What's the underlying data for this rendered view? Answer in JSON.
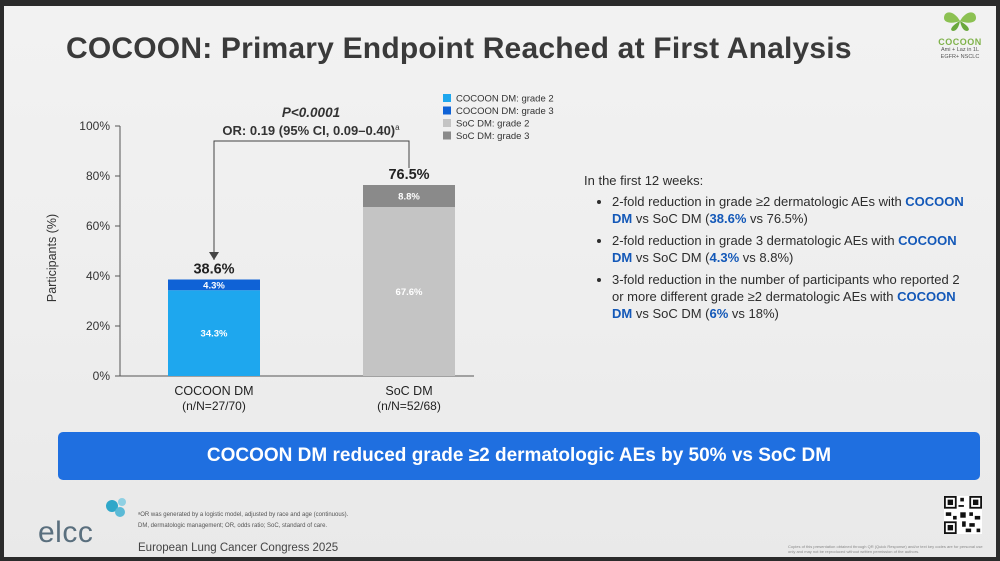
{
  "title": "COCOON: Primary Endpoint Reached at First Analysis",
  "logo": {
    "wordmark": "COCOON",
    "subtitle_1": "Ami + Laz in 1L",
    "subtitle_2": "EGFR+ NSCLC",
    "icon": "butterfly-icon"
  },
  "chart_data": {
    "type": "bar",
    "stacked": true,
    "categories": [
      "COCOON DM",
      "SoC DM"
    ],
    "category_subs": [
      "(n/N=27/70)",
      "(n/N=52/68)"
    ],
    "series": [
      {
        "name": "COCOON DM: grade 2",
        "color": "#1ea7ee",
        "values": [
          34.3,
          null
        ],
        "labels": [
          "34.3%",
          ""
        ]
      },
      {
        "name": "COCOON DM: grade 3",
        "color": "#0f62d6",
        "values": [
          4.3,
          null
        ],
        "labels": [
          "4.3%",
          ""
        ]
      },
      {
        "name": "SoC DM: grade 2",
        "color": "#c4c4c4",
        "values": [
          null,
          67.6
        ],
        "labels": [
          "",
          "67.6%"
        ]
      },
      {
        "name": "SoC DM: grade 3",
        "color": "#8a8a8a",
        "values": [
          null,
          8.8
        ],
        "labels": [
          "",
          "8.8%"
        ]
      }
    ],
    "totals": [
      "38.6%",
      "76.5%"
    ],
    "ylabel": "Participants (%)",
    "yticks": [
      "0%",
      "20%",
      "40%",
      "60%",
      "80%",
      "100%"
    ],
    "ylim": [
      0,
      100
    ],
    "annotation": {
      "pvalue": "P<0.0001",
      "or_text": "OR: 0.19 (95% CI, 0.09–0.40)",
      "superscript": "a"
    },
    "legend_position": "top-right"
  },
  "bullets": {
    "intro": "In the first 12 weeks:",
    "items": [
      [
        {
          "t": "2-fold reduction in grade ≥2 dermatologic AEs with "
        },
        {
          "t": "COCOON DM",
          "b": true
        },
        {
          "t": " vs SoC DM ("
        },
        {
          "t": "38.6%",
          "b": true
        },
        {
          "t": " vs 76.5%)"
        }
      ],
      [
        {
          "t": "2-fold reduction in grade 3 dermatologic AEs with "
        },
        {
          "t": "COCOON DM",
          "b": true
        },
        {
          "t": " vs SoC DM ("
        },
        {
          "t": "4.3%",
          "b": true
        },
        {
          "t": " vs 8.8%)"
        }
      ],
      [
        {
          "t": "3-fold reduction in the number of participants who reported 2 or more different grade ≥2 dermatologic AEs with "
        },
        {
          "t": "COCOON DM",
          "b": true
        },
        {
          "t": " vs SoC DM ("
        },
        {
          "t": "6%",
          "b": true
        },
        {
          "t": " vs 18%)"
        }
      ]
    ]
  },
  "banner": "COCOON DM reduced grade ≥2 dermatologic AEs by 50% vs SoC DM",
  "footer": {
    "brand": "elcc",
    "footnote_1": "ᵃOR was generated by a logistic model, adjusted by race and age (continuous).",
    "footnote_2": "DM, dermatologic management; OR, odds ratio; SoC, standard of care.",
    "congress": "European Lung Cancer Congress 2025",
    "disclaimer": "Copies of this presentation obtained through QR (Quick Response) and/or text key codes are for personal use only and may not be reproduced without written permission of the authors."
  }
}
